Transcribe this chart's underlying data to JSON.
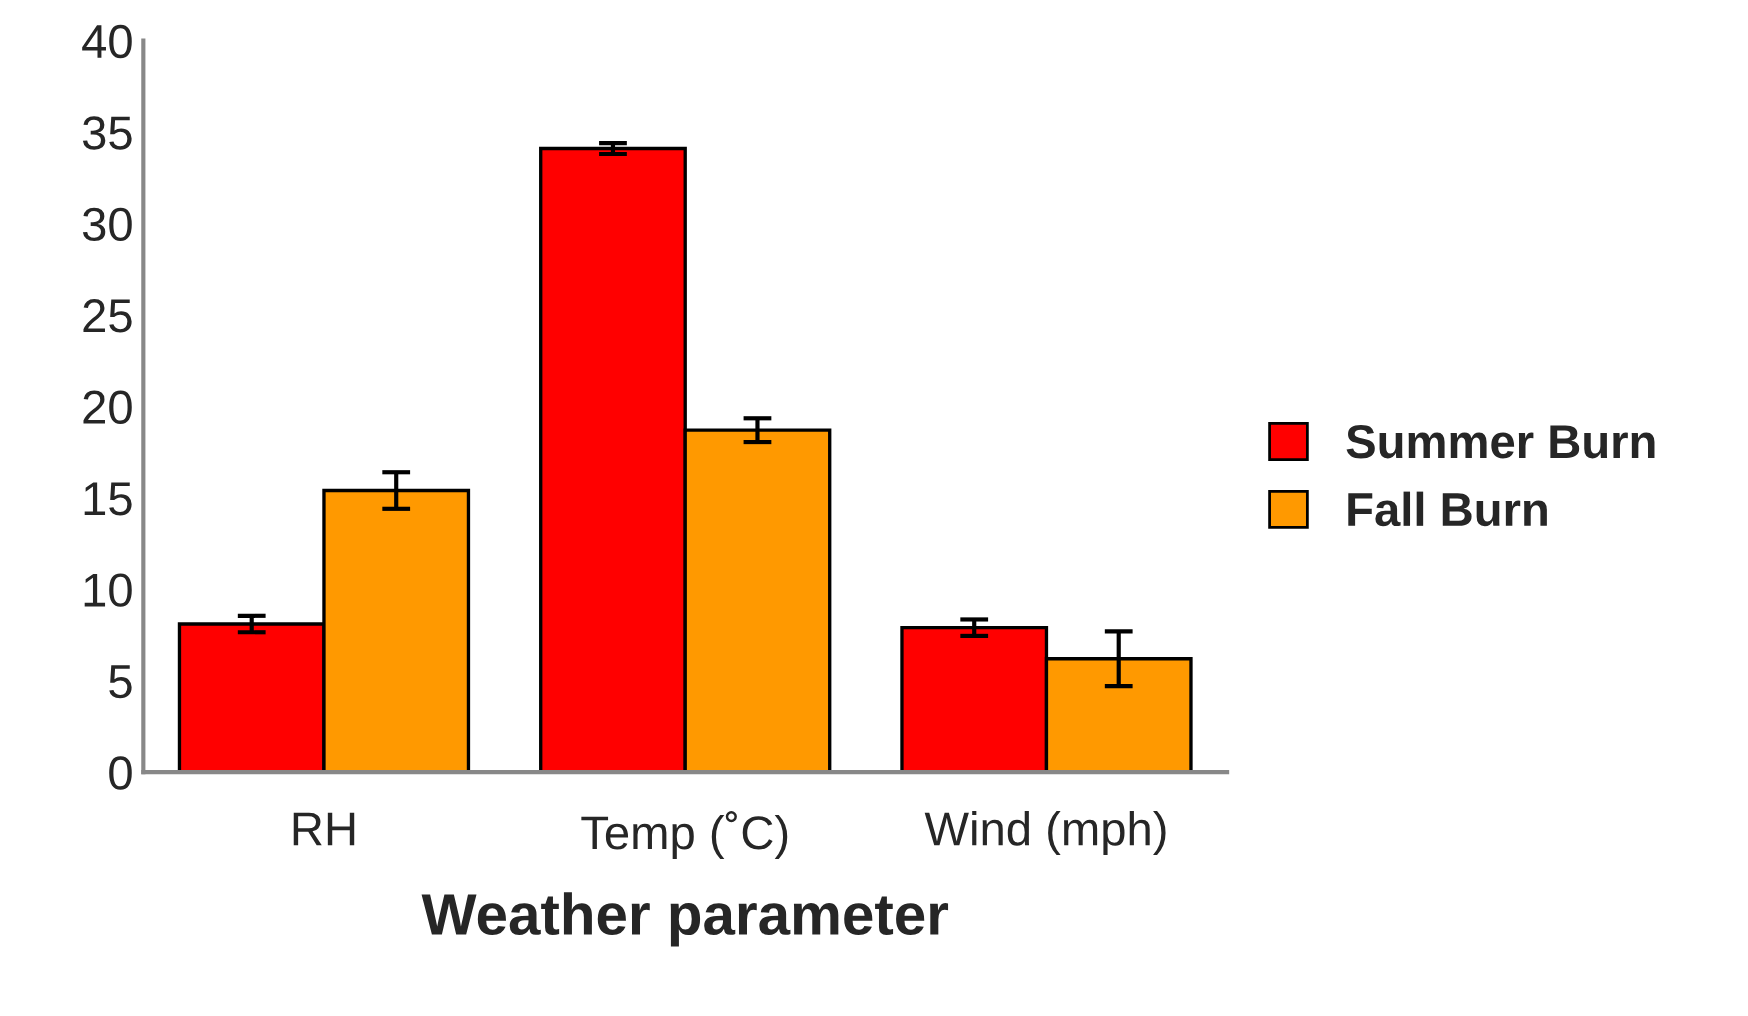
{
  "chart_data": {
    "type": "bar",
    "xlabel": "Weather parameter",
    "categories": [
      "RH",
      "Temp (˚C)",
      "Wind (mph)"
    ],
    "series": [
      {
        "name": "Summer Burn",
        "color": "#ff0000",
        "values": [
          8.1,
          34.1,
          7.9
        ],
        "errors": [
          0.45,
          0.3,
          0.45
        ]
      },
      {
        "name": "Fall Burn",
        "color": "#ff9900",
        "values": [
          15.4,
          18.7,
          6.2
        ],
        "errors": [
          1.0,
          0.65,
          1.5
        ]
      }
    ],
    "ylim": [
      0,
      40
    ],
    "yticks": [
      0,
      5,
      10,
      15,
      20,
      25,
      30,
      35,
      40
    ],
    "grid": false,
    "legend": "right"
  }
}
